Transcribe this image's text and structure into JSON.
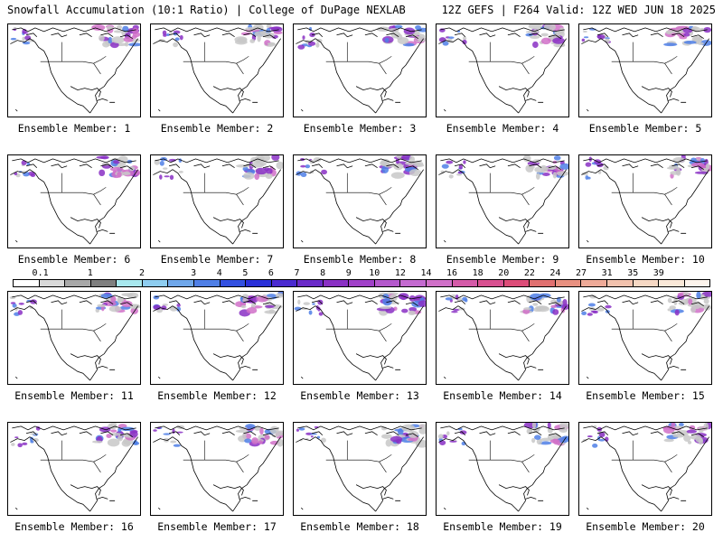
{
  "header": {
    "left_title": "Snowfall Accumulation (10:1 Ratio) | College of DuPage NEXLAB",
    "right_title": "12Z GEFS | F264 Valid: 12Z WED JUN 18 2025"
  },
  "members": [
    {
      "label": "Ensemble Member: 1"
    },
    {
      "label": "Ensemble Member: 2"
    },
    {
      "label": "Ensemble Member: 3"
    },
    {
      "label": "Ensemble Member: 4"
    },
    {
      "label": "Ensemble Member: 5"
    },
    {
      "label": "Ensemble Member: 6"
    },
    {
      "label": "Ensemble Member: 7"
    },
    {
      "label": "Ensemble Member: 8"
    },
    {
      "label": "Ensemble Member: 9"
    },
    {
      "label": "Ensemble Member: 10"
    },
    {
      "label": "Ensemble Member: 11"
    },
    {
      "label": "Ensemble Member: 12"
    },
    {
      "label": "Ensemble Member: 13"
    },
    {
      "label": "Ensemble Member: 14"
    },
    {
      "label": "Ensemble Member: 15"
    },
    {
      "label": "Ensemble Member: 16"
    },
    {
      "label": "Ensemble Member: 17"
    },
    {
      "label": "Ensemble Member: 18"
    },
    {
      "label": "Ensemble Member: 19"
    },
    {
      "label": "Ensemble Member: 20"
    }
  ],
  "colorbar": {
    "labels": [
      "0.1",
      "1",
      "2",
      "3",
      "4",
      "5",
      "6",
      "7",
      "8",
      "9",
      "10",
      "12",
      "14",
      "16",
      "18",
      "20",
      "22",
      "24",
      "27",
      "31",
      "35",
      "39"
    ],
    "colors": [
      "#ffffff",
      "#d9d9d9",
      "#a8a8a8",
      "#7f7f7f",
      "#a8e8ee",
      "#8ecdf0",
      "#6fa7ea",
      "#4f7fe6",
      "#3350e0",
      "#2a30d8",
      "#4a2ad0",
      "#6a2ac8",
      "#8a30c4",
      "#a040c8",
      "#b458cc",
      "#c46ad0",
      "#d070c8",
      "#d45aa8",
      "#d85090",
      "#dc4c78",
      "#e07070",
      "#e89080",
      "#eeaa98",
      "#f2c2ae",
      "#f6d8c4",
      "#fae8d8",
      "#fdf4ec"
    ]
  },
  "colors": {
    "land_outline": "#000000",
    "snow_gray": "#c8c8c8",
    "snow_blue": "#4f7fe6",
    "snow_purple": "#8a30c4",
    "snow_magenta": "#d070c8"
  }
}
